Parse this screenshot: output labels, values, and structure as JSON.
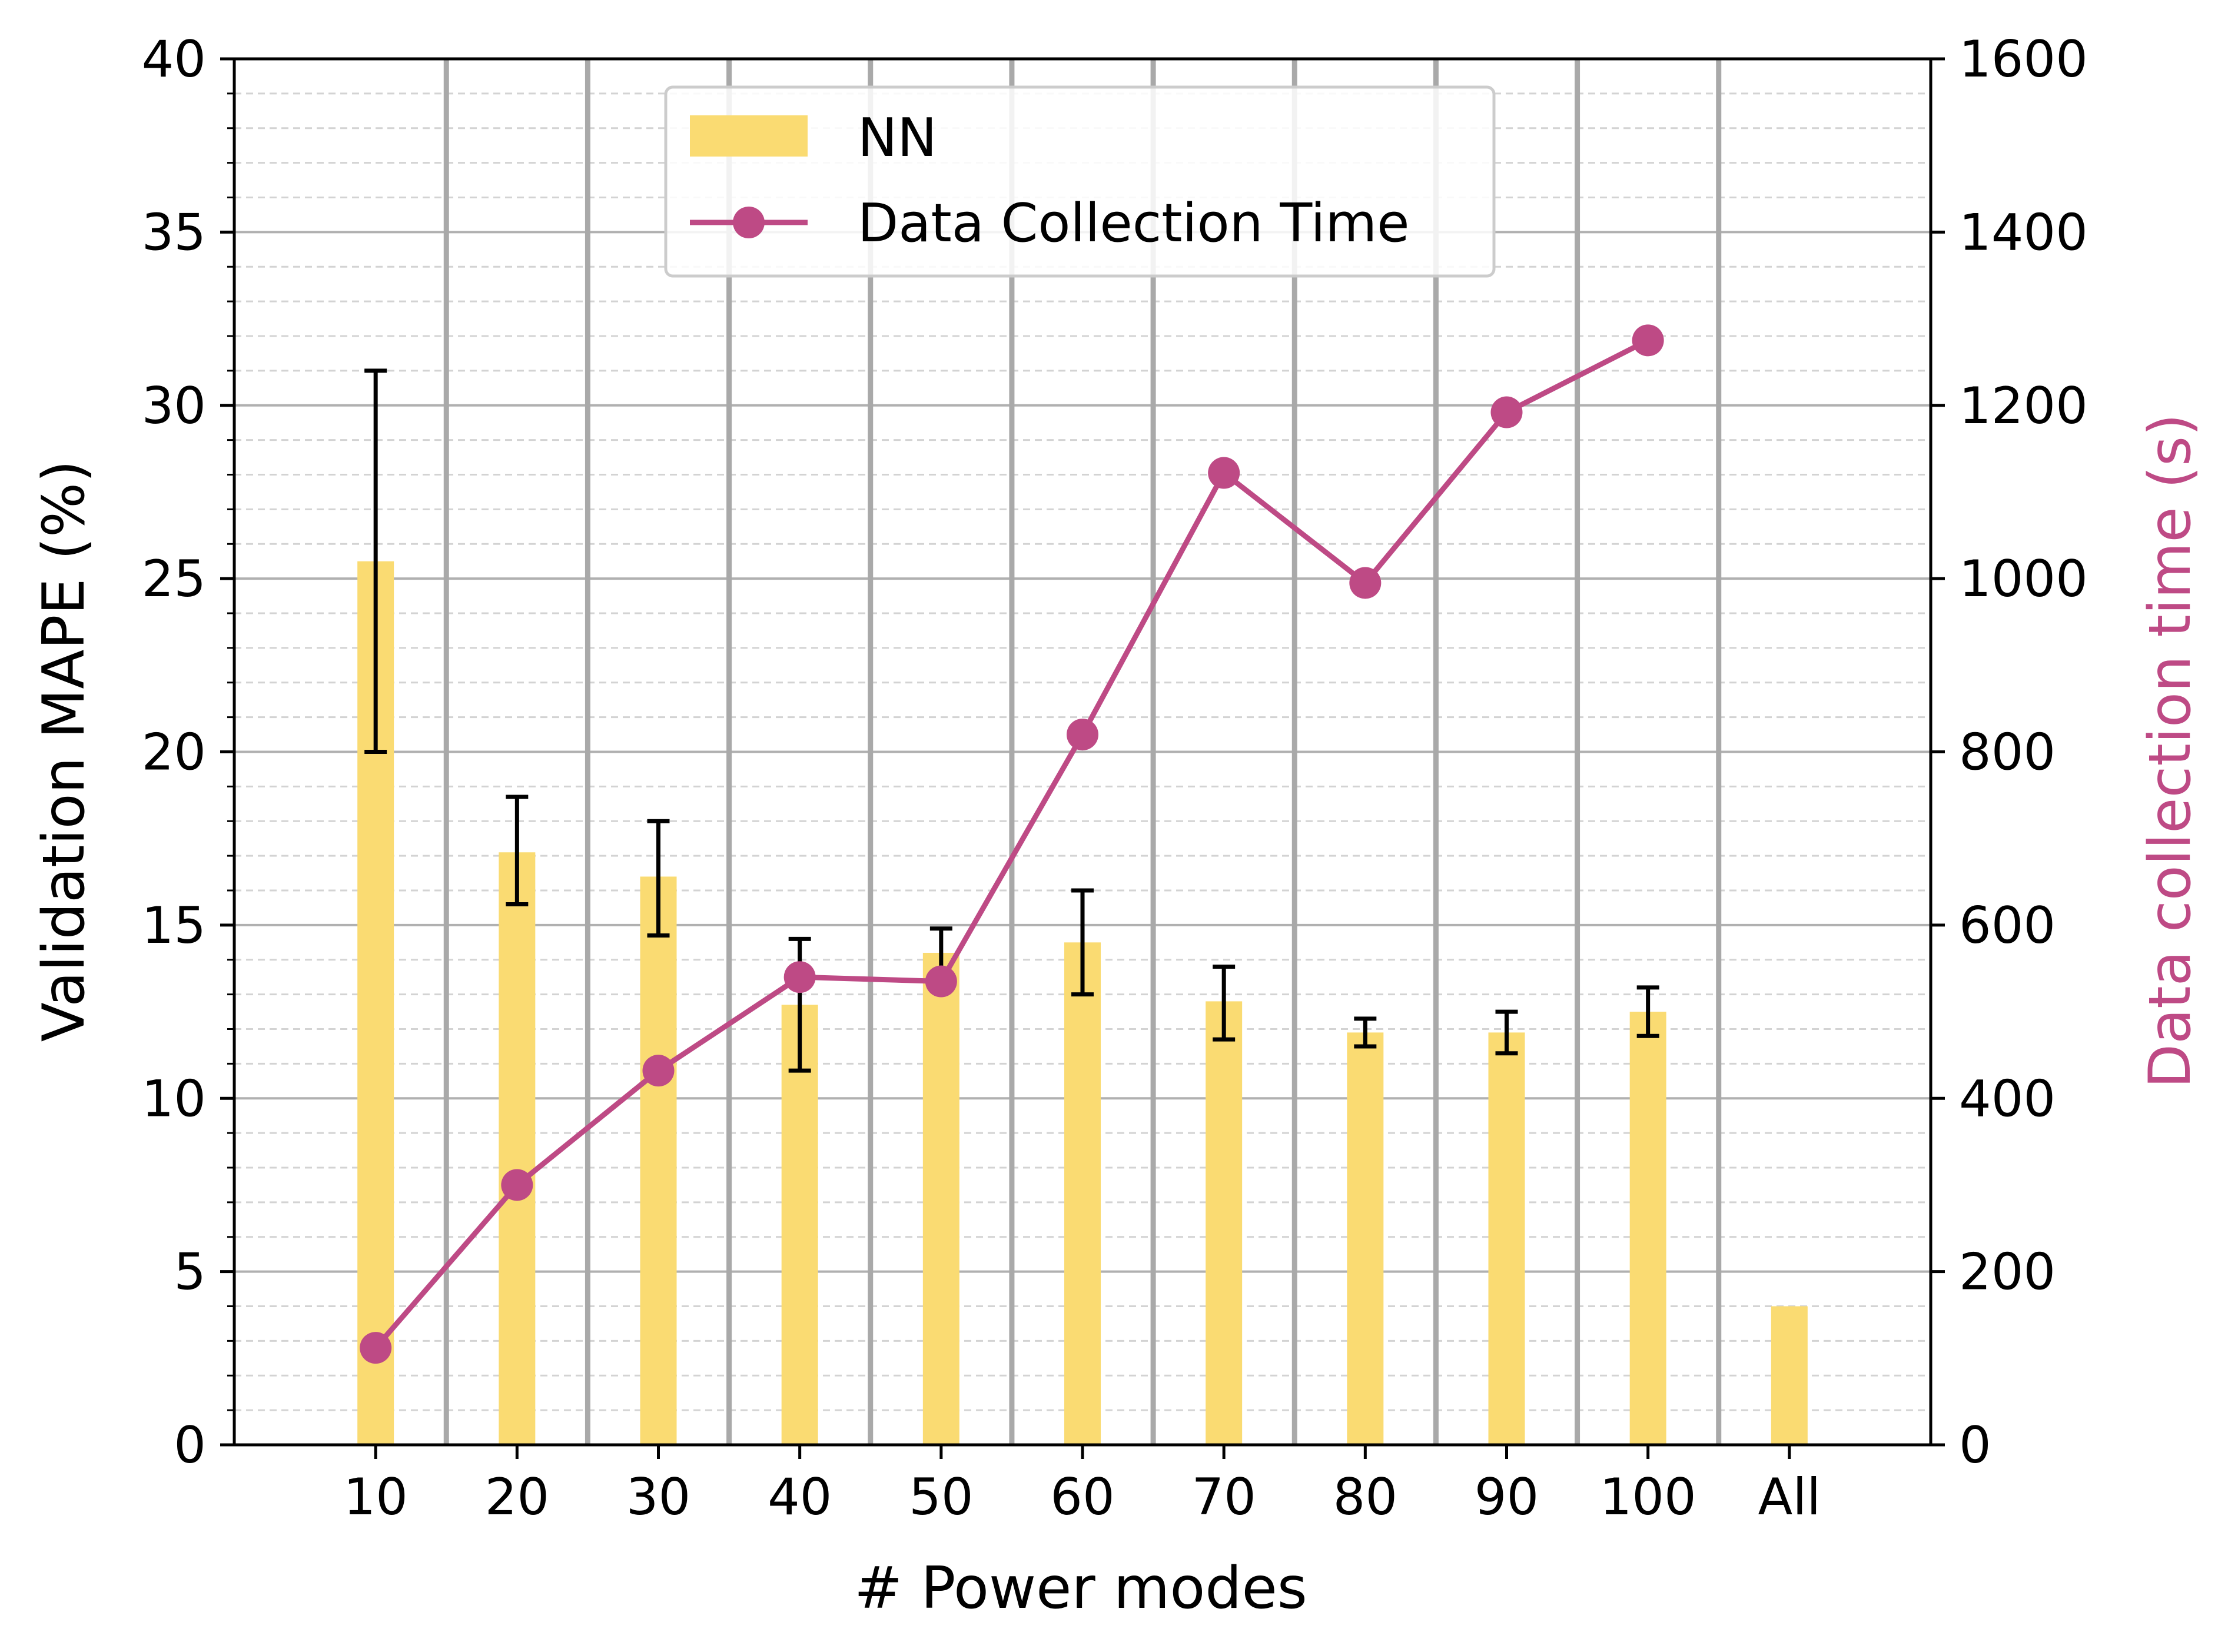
{
  "chart_data": {
    "type": "bar",
    "title": "",
    "xlabel": "# Power modes",
    "ylabel": "Validation MAPE (%)",
    "y2label": "Data collection time (s)",
    "categories": [
      "10",
      "20",
      "30",
      "40",
      "50",
      "60",
      "70",
      "80",
      "90",
      "100",
      "All"
    ],
    "ylim": [
      0,
      40
    ],
    "y2lim": [
      0,
      1600
    ],
    "yticks": [
      "0",
      "5",
      "10",
      "15",
      "20",
      "25",
      "30",
      "35",
      "40"
    ],
    "y2ticks": [
      "0",
      "200",
      "400",
      "600",
      "800",
      "1000",
      "1200",
      "1400",
      "1600"
    ],
    "grid": true,
    "legend_position": "upper-center",
    "series": [
      {
        "name": "NN",
        "kind": "bar",
        "axis": "left",
        "color": "#FADB72",
        "values": [
          25.5,
          17.1,
          16.4,
          12.7,
          14.2,
          14.5,
          12.8,
          11.9,
          11.9,
          12.5,
          4.0
        ],
        "error_low": [
          20.0,
          15.6,
          14.7,
          10.8,
          13.4,
          13.0,
          11.7,
          11.5,
          11.3,
          11.8,
          null
        ],
        "error_high": [
          31.0,
          18.7,
          18.0,
          14.6,
          14.9,
          16.0,
          13.8,
          12.3,
          12.5,
          13.2,
          null
        ]
      },
      {
        "name": "Data Collection Time",
        "kind": "line",
        "axis": "right",
        "color": "#BE4A85",
        "values": [
          112,
          300,
          432,
          540,
          535,
          820,
          1122,
          995,
          1192,
          1275,
          null
        ]
      }
    ]
  },
  "colors": {
    "bar": "#FADB72",
    "line": "#BE4A85",
    "right_axis_label": "#BE4A85",
    "grid_major": "#B0B0B0",
    "grid_minor": "#D3D3D3",
    "separator": "#A9A9A9",
    "axes": "#000000"
  }
}
